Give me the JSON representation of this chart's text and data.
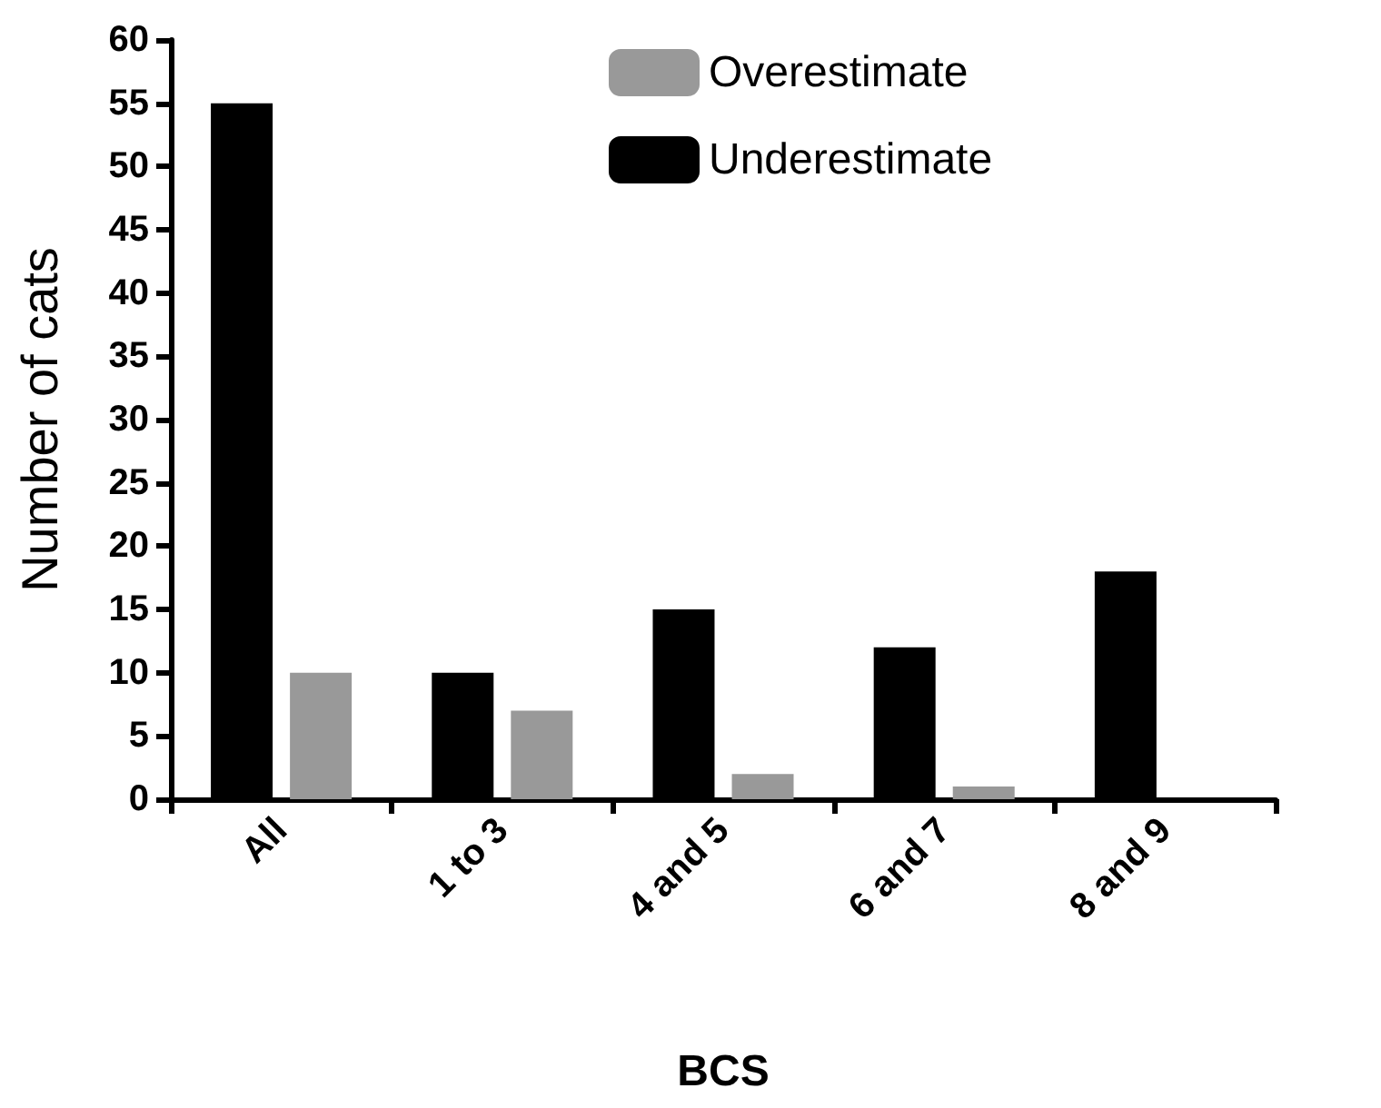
{
  "chart_data": {
    "type": "bar",
    "xlabel": "BCS",
    "ylabel": "Number of cats",
    "categories": [
      "All",
      "1 to 3",
      "4 and 5",
      "6 and 7",
      "8 and 9"
    ],
    "series": [
      {
        "name": "Underestimate",
        "color": "#000000",
        "values": [
          55,
          10,
          15,
          12,
          18
        ]
      },
      {
        "name": "Overestimate",
        "color": "#999999",
        "values": [
          10,
          7,
          2,
          1,
          0
        ]
      }
    ],
    "ylim": [
      0,
      60
    ],
    "yticks": [
      0,
      5,
      10,
      15,
      20,
      25,
      30,
      35,
      40,
      45,
      50,
      55,
      60
    ],
    "grid": false,
    "legend": "top right"
  }
}
